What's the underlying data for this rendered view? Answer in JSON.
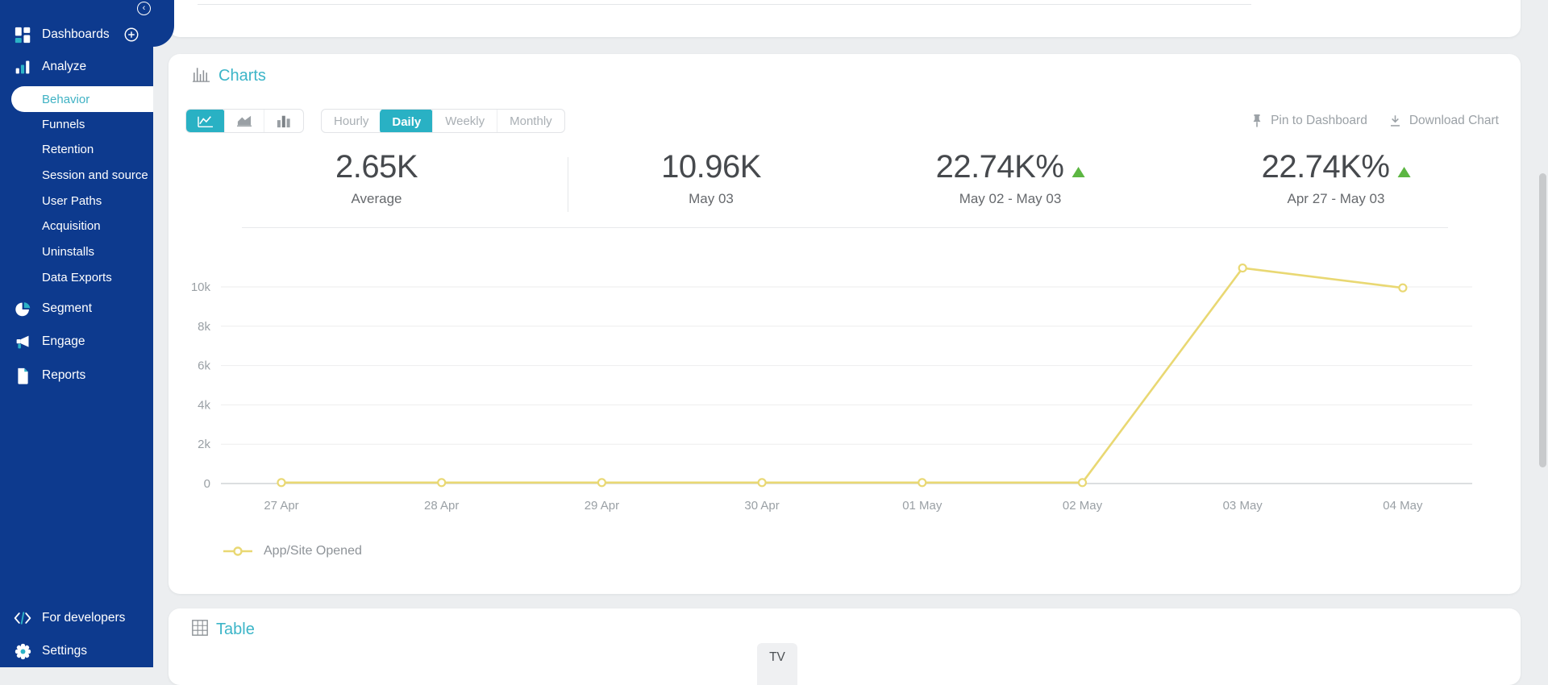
{
  "colors": {
    "sidebar_blue": "#0d3a8e",
    "accent_teal": "#29b1c4",
    "line_yellow": "#e9d873",
    "positive_green": "#5cb642",
    "page_bg": "#eceef0"
  },
  "sidebar": {
    "dashboards_label": "Dashboards",
    "analyze_label": "Analyze",
    "submenu": [
      "Behavior",
      "Funnels",
      "Retention",
      "Session and source",
      "User Paths",
      "Acquisition",
      "Uninstalls",
      "Data Exports"
    ],
    "active_submenu": "Behavior",
    "segment_label": "Segment",
    "engage_label": "Engage",
    "reports_label": "Reports",
    "developers_label": "For developers",
    "settings_label": "Settings"
  },
  "charts": {
    "title": "Charts",
    "chart_type_selected": "line",
    "granularity": {
      "options": [
        "Hourly",
        "Daily",
        "Weekly",
        "Monthly"
      ],
      "selected": "Daily"
    },
    "actions": {
      "pin": "Pin to Dashboard",
      "download": "Download Chart"
    },
    "stats": [
      {
        "value": "2.65K",
        "label": "Average",
        "trend": null
      },
      {
        "value": "10.96K",
        "label": "May 03",
        "trend": null
      },
      {
        "value": "22.74K%",
        "label": "May 02 - May 03",
        "trend": "up"
      },
      {
        "value": "22.74K%",
        "label": "Apr 27 - May 03",
        "trend": "up"
      }
    ]
  },
  "chart_data": {
    "type": "line",
    "title": "",
    "x": [
      "27 Apr",
      "28 Apr",
      "29 Apr",
      "30 Apr",
      "01 May",
      "02 May",
      "03 May",
      "04 May"
    ],
    "series": [
      {
        "name": "App/Site Opened",
        "values": [
          48,
          48,
          48,
          48,
          48,
          48,
          10960,
          9952
        ]
      }
    ],
    "y_ticks": {
      "values": [
        0,
        2000,
        4000,
        6000,
        8000,
        10000
      ],
      "labels": [
        "0",
        "2k",
        "4k",
        "6k",
        "8k",
        "10k"
      ]
    },
    "ylim": [
      0,
      11200
    ],
    "grid": "horizontal",
    "legend_position": "bottom-left",
    "line_color": "#e9d873",
    "xlabel": "",
    "ylabel": ""
  },
  "table": {
    "title": "Table",
    "tabs": [
      {
        "label": "TV",
        "selected": true
      }
    ]
  }
}
